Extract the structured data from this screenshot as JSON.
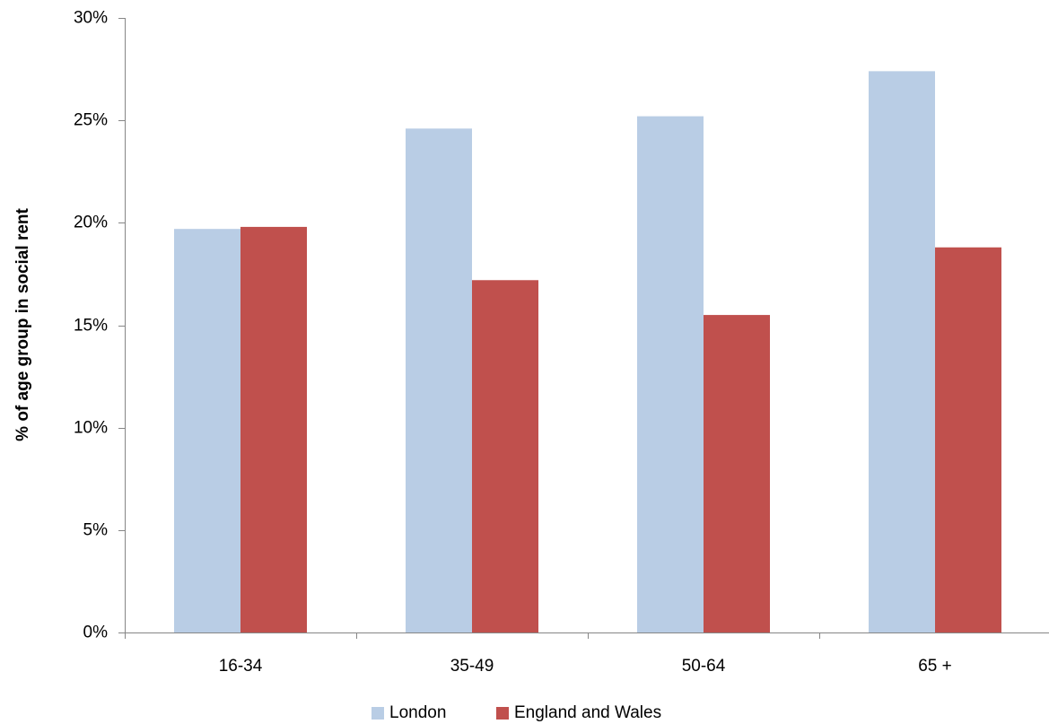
{
  "chart_data": {
    "type": "bar",
    "categories": [
      "16-34",
      "35-49",
      "50-64",
      "65 +"
    ],
    "series": [
      {
        "name": "London",
        "values": [
          19.7,
          24.6,
          25.2,
          27.4
        ],
        "color": "#b9cde5"
      },
      {
        "name": "England and Wales",
        "values": [
          19.8,
          17.2,
          15.5,
          18.8
        ],
        "color": "#c0504d"
      }
    ],
    "ylabel": "% of age group in social rent",
    "ylim": [
      0,
      30
    ],
    "yticks": [
      0,
      5,
      10,
      15,
      20,
      25,
      30
    ],
    "ytick_labels": [
      "0%",
      "5%",
      "10%",
      "15%",
      "20%",
      "25%",
      "30%"
    ],
    "grid": false,
    "legend_position": "bottom"
  }
}
